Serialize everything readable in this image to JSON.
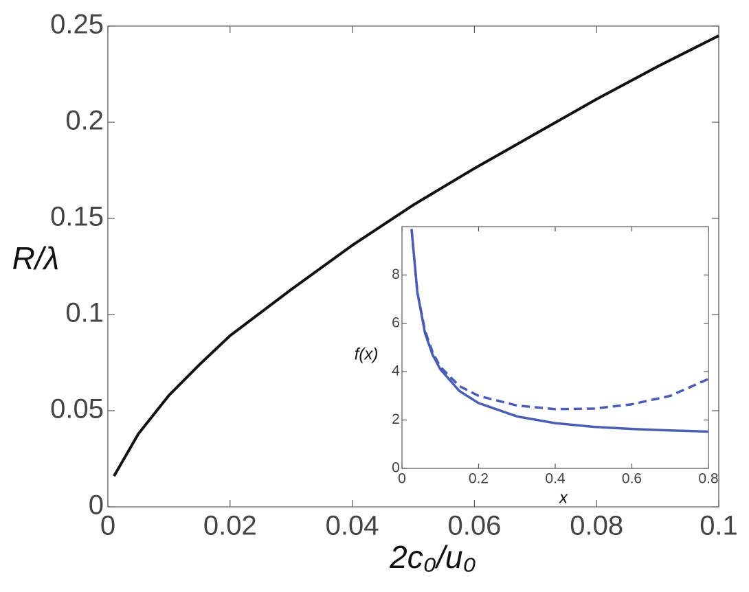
{
  "chart_data": [
    {
      "type": "line",
      "xlabel": "2c₀/u₀",
      "ylabel": "R/λ",
      "x": [
        0.001,
        0.005,
        0.01,
        0.015,
        0.02,
        0.03,
        0.04,
        0.05,
        0.06,
        0.07,
        0.08,
        0.09,
        0.1
      ],
      "series": [
        {
          "color": "#111111",
          "values": [
            0.016,
            0.038,
            0.058,
            0.074,
            0.089,
            0.113,
            0.136,
            0.157,
            0.176,
            0.194,
            0.212,
            0.229,
            0.245
          ]
        }
      ],
      "xlim": [
        0,
        0.1
      ],
      "xticks": [
        0,
        0.02,
        0.04,
        0.06,
        0.08,
        0.1
      ],
      "ylim": [
        0,
        0.25
      ],
      "yticks": [
        0,
        0.05,
        0.1,
        0.15,
        0.2,
        0.25
      ]
    },
    {
      "type": "line",
      "xlabel": "x",
      "ylabel": "f(x)",
      "x": [
        0.025,
        0.04,
        0.06,
        0.08,
        0.1,
        0.15,
        0.2,
        0.3,
        0.4,
        0.5,
        0.6,
        0.7,
        0.8
      ],
      "series": [
        {
          "color": "#4a5db3",
          "dashed": false,
          "values": [
            9.9,
            7.3,
            5.6,
            4.7,
            4.1,
            3.2,
            2.7,
            2.15,
            1.87,
            1.72,
            1.63,
            1.57,
            1.52
          ]
        },
        {
          "color": "#4a5db3",
          "dashed": true,
          "values": [
            9.9,
            7.3,
            5.7,
            4.8,
            4.2,
            3.4,
            3.0,
            2.6,
            2.45,
            2.47,
            2.65,
            3.0,
            3.7
          ]
        }
      ],
      "xlim": [
        0,
        0.8
      ],
      "xticks": [
        0,
        0.2,
        0.4,
        0.6,
        0.8
      ],
      "ylim": [
        0,
        10
      ],
      "yticks": [
        0,
        2,
        4,
        6,
        8
      ]
    }
  ]
}
